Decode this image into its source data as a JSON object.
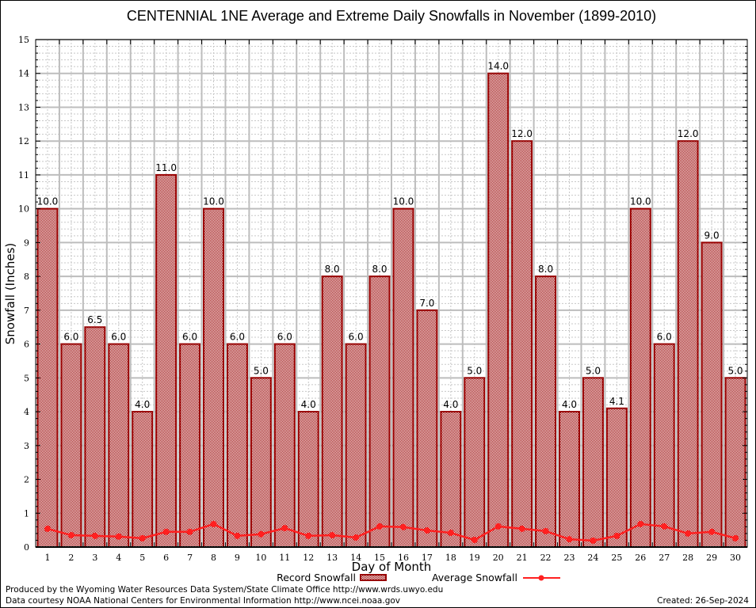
{
  "chart_data": {
    "type": "bar",
    "title": "CENTENNIAL 1NE Average and Extreme Daily Snowfalls in November (1899-2010)",
    "xlabel": "Day of Month",
    "ylabel": "Snowfall (Inches)",
    "ylim": [
      0,
      15
    ],
    "yticks": [
      "0",
      "1",
      "2",
      "3",
      "4",
      "5",
      "6",
      "7",
      "8",
      "9",
      "10",
      "11",
      "12",
      "13",
      "14",
      "15"
    ],
    "categories": [
      "1",
      "2",
      "3",
      "4",
      "5",
      "6",
      "7",
      "8",
      "9",
      "10",
      "11",
      "12",
      "13",
      "14",
      "15",
      "16",
      "17",
      "18",
      "19",
      "20",
      "21",
      "22",
      "23",
      "24",
      "25",
      "26",
      "27",
      "28",
      "29",
      "30"
    ],
    "grid": true,
    "series": [
      {
        "name": "Record Snowfall",
        "type": "bar",
        "color": "#990000",
        "values": [
          10.0,
          6.0,
          6.5,
          6.0,
          4.0,
          11.0,
          6.0,
          10.0,
          6.0,
          5.0,
          6.0,
          4.0,
          8.0,
          6.0,
          8.0,
          10.0,
          7.0,
          4.0,
          5.0,
          14.0,
          12.0,
          8.0,
          4.0,
          5.0,
          4.1,
          10.0,
          6.0,
          12.0,
          9.0,
          5.0
        ],
        "labels": [
          "10.0",
          "6.0",
          "6.5",
          "6.0",
          "4.0",
          "11.0",
          "6.0",
          "10.0",
          "6.0",
          "5.0",
          "6.0",
          "4.0",
          "8.0",
          "6.0",
          "8.0",
          "10.0",
          "7.0",
          "4.0",
          "5.0",
          "14.0",
          "12.0",
          "8.0",
          "4.0",
          "5.0",
          "4.1",
          "10.0",
          "6.0",
          "12.0",
          "9.0",
          "5.0"
        ]
      },
      {
        "name": "Average Snowfall",
        "type": "line",
        "color": "#ff2020",
        "values": [
          0.54,
          0.35,
          0.33,
          0.31,
          0.26,
          0.45,
          0.45,
          0.68,
          0.33,
          0.38,
          0.56,
          0.33,
          0.35,
          0.28,
          0.61,
          0.59,
          0.49,
          0.42,
          0.21,
          0.61,
          0.54,
          0.47,
          0.23,
          0.19,
          0.33,
          0.68,
          0.61,
          0.4,
          0.45,
          0.26
        ]
      }
    ],
    "legend_position": "bottom-center"
  },
  "footer": {
    "produced_by": "Produced by the Wyoming Water Resources Data System/State Climate Office http://www.wrds.uwyo.edu",
    "data_courtesy": "Data courtesy NOAA National Centers for Environmental Information http://www.ncei.noaa.gov",
    "created": "Created: 26-Sep-2024"
  }
}
